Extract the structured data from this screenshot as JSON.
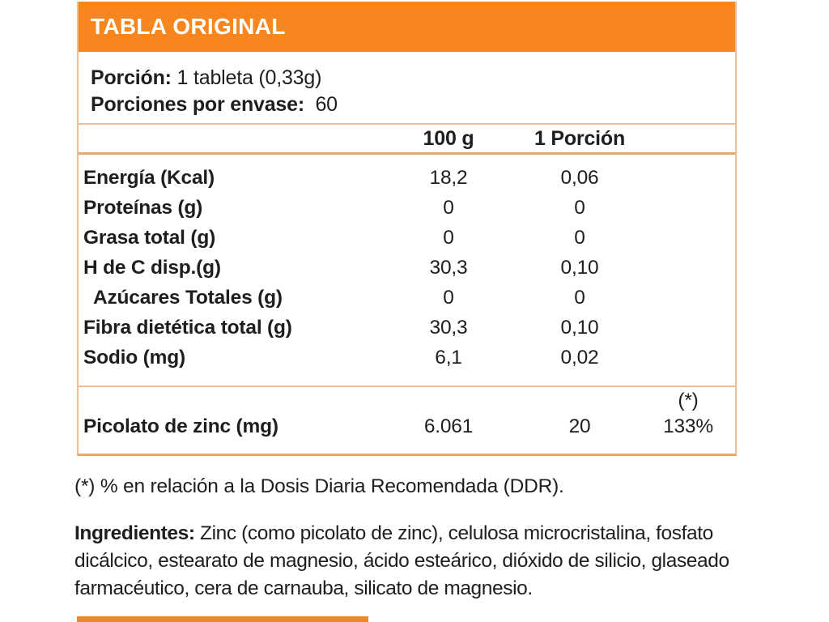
{
  "colors": {
    "accent_orange": "#F6861D",
    "border_light": "#F3BB92",
    "border_strong": "#EFA468",
    "text": "#1E1E1C",
    "background": "#FFFFFF",
    "header_text": "#FFFFFF"
  },
  "header": {
    "title": "TABLA ORIGINAL"
  },
  "serving": {
    "portion_label": "Porción:",
    "portion_value": " 1 tableta (0,33g)",
    "servings_label": "Porciones por envase:",
    "servings_value": "  60"
  },
  "columns": {
    "col_100g": "100 g",
    "col_portion": "1 Porción"
  },
  "nutrients": [
    {
      "label": "Energía (Kcal)",
      "per100": "18,2",
      "portion": "0,06"
    },
    {
      "label": "Proteínas (g)",
      "per100": "0",
      "portion": "0"
    },
    {
      "label": "Grasa total (g)",
      "per100": "0",
      "portion": "0"
    },
    {
      "label": "H de C disp.(g)",
      "per100": "30,3",
      "portion": "0,10"
    },
    {
      "label": "Azúcares Totales (g)",
      "per100": "0",
      "portion": "0"
    },
    {
      "label": "Fibra dietética total (g)",
      "per100": "30,3",
      "portion": "0,10"
    },
    {
      "label": "Sodio (mg)",
      "per100": "6,1",
      "portion": "0,02"
    }
  ],
  "supplement": {
    "ddr_marker": "(*)",
    "label": "Picolato de zinc (mg)",
    "per100": "6.061",
    "portion": "20",
    "ddr_percent": "133%"
  },
  "footnote": "(*) % en relación a la Dosis Diaria Recomendada (DDR).",
  "ingredients": {
    "label": "Ingredientes:",
    "text": "Zinc (como picolato de zinc), celulosa microcristalina, fosfato dicálcico, estearato de magnesio, ácido esteárico, dióxido de silicio, glaseado farmacéutico, cera de carnauba, silicato de magnesio.",
    "line1_rest": " Zinc (como picolato de zinc), celulosa microcristalina, fosfato",
    "line2": "dicálcico, estearato de magnesio, ácido esteárico, dióxido de silicio, glaseado",
    "line3": "farmacéutico, cera de carnauba, silicato de magnesio."
  }
}
